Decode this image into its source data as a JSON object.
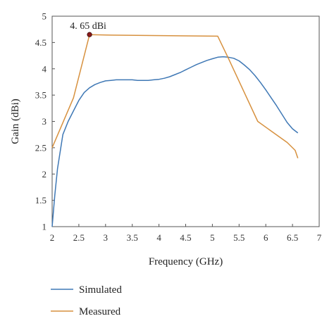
{
  "chart_data": {
    "type": "line",
    "xlabel": "Frequency (GHz)",
    "ylabel": "Gain (dBi)",
    "xlim": [
      2,
      7
    ],
    "ylim": [
      1,
      5
    ],
    "xticks": [
      "2",
      "2.5",
      "3",
      "3.5",
      "4",
      "4.5",
      "5",
      "5.5",
      "6",
      "6.5",
      "7"
    ],
    "yticks": [
      "1",
      "1.5",
      "2",
      "2.5",
      "3",
      "3.5",
      "4",
      "4.5",
      "5"
    ],
    "grid": false,
    "legend_position": "bottom-left",
    "series": [
      {
        "name": "Simulated",
        "color": "#3f78b5",
        "x": [
          2.0,
          2.05,
          2.1,
          2.2,
          2.3,
          2.4,
          2.5,
          2.6,
          2.7,
          2.8,
          2.9,
          3.0,
          3.1,
          3.2,
          3.3,
          3.4,
          3.5,
          3.6,
          3.7,
          3.8,
          3.9,
          4.0,
          4.1,
          4.2,
          4.3,
          4.4,
          4.5,
          4.6,
          4.7,
          4.8,
          4.9,
          5.0,
          5.1,
          5.2,
          5.3,
          5.4,
          5.5,
          5.6,
          5.7,
          5.8,
          5.9,
          6.0,
          6.1,
          6.2,
          6.3,
          6.4,
          6.5,
          6.6
        ],
        "y": [
          1.0,
          1.6,
          2.1,
          2.75,
          3.0,
          3.2,
          3.4,
          3.55,
          3.64,
          3.7,
          3.74,
          3.77,
          3.78,
          3.79,
          3.79,
          3.79,
          3.79,
          3.78,
          3.78,
          3.78,
          3.79,
          3.8,
          3.82,
          3.85,
          3.89,
          3.93,
          3.98,
          4.03,
          4.08,
          4.12,
          4.16,
          4.19,
          4.22,
          4.23,
          4.22,
          4.2,
          4.15,
          4.07,
          3.98,
          3.87,
          3.74,
          3.6,
          3.45,
          3.3,
          3.14,
          2.98,
          2.86,
          2.78
        ]
      },
      {
        "name": "Measured",
        "color": "#d7913f",
        "x": [
          2.0,
          2.4,
          2.7,
          3.1,
          5.1,
          5.3,
          5.85,
          6.4,
          6.55,
          6.6
        ],
        "y": [
          2.5,
          3.45,
          4.65,
          4.64,
          4.62,
          4.2,
          3.0,
          2.6,
          2.45,
          2.3
        ]
      }
    ],
    "annotations": [
      {
        "text": "4. 65 dBi",
        "x": 2.7,
        "y": 4.65,
        "marker_color": "#8b1a1a"
      }
    ]
  }
}
